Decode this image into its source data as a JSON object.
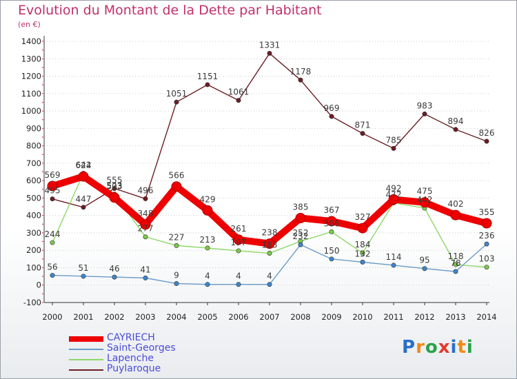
{
  "header": {
    "title": "Evolution du Montant de la Dette par Habitant",
    "unit": "(en €)"
  },
  "brand": {
    "letters": [
      "P",
      "r",
      "o",
      "x",
      "i",
      "t",
      "i"
    ],
    "colors": [
      "#2a6fc9",
      "#f08a16",
      "#2aa24a",
      "#e23b2e",
      "#2a6fc9",
      "#f08a16",
      "#2aa24a"
    ]
  },
  "chart_data": {
    "type": "line",
    "title": "Evolution du Montant de la Dette par Habitant",
    "ylabel": "(en €)",
    "xlabel": "",
    "ylim": [
      -100,
      1400
    ],
    "yticks": [
      -100,
      0,
      100,
      200,
      300,
      400,
      500,
      600,
      700,
      800,
      900,
      1000,
      1100,
      1200,
      1300,
      1400
    ],
    "grid": "y-dotted",
    "legend": "bottom-left",
    "x": [
      "2000",
      "2001",
      "2002",
      "2003",
      "2004",
      "2005",
      "2006",
      "2007",
      "2008",
      "2009",
      "2010",
      "2011",
      "2012",
      "2013",
      "2014"
    ],
    "series": [
      {
        "name": "Puylaroque",
        "color": "#6b1d24",
        "marker": "#6b1d24",
        "values": [
          495,
          447,
          555,
          496,
          1051,
          1151,
          1061,
          1331,
          1178,
          969,
          871,
          785,
          983,
          894,
          826
        ]
      },
      {
        "name": "Lapenche",
        "color": "#8ed866",
        "marker": "#7bc94a",
        "values": [
          244,
          642,
          523,
          277,
          227,
          213,
          197,
          183,
          252,
          306,
          184,
          472,
          442,
          118,
          103
        ]
      },
      {
        "name": "Saint-Georges",
        "color": "#6a9bc7",
        "marker": "#3d86cc",
        "values": [
          56,
          51,
          46,
          41,
          9,
          4,
          4,
          4,
          232,
          150,
          132,
          114,
          95,
          78,
          236
        ]
      },
      {
        "name": "CAYRIECH",
        "color": "#ee0000",
        "marker": "#ee0000",
        "values": [
          569,
          624,
          503,
          348,
          566,
          429,
          261,
          238,
          385,
          367,
          327,
          492,
          475,
          402,
          355
        ]
      }
    ]
  }
}
